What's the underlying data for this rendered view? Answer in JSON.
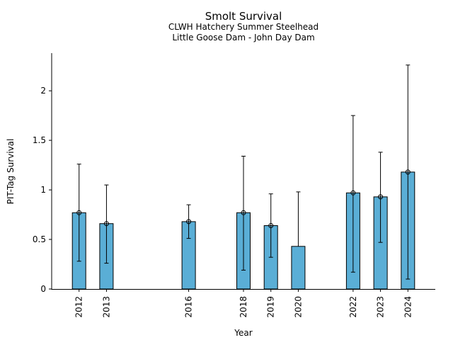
{
  "chart_data": {
    "type": "bar",
    "title": "Smolt Survival",
    "subtitle_lines": [
      "CLWH Hatchery Summer Steelhead",
      "Little Goose Dam - John Day Dam"
    ],
    "xlabel": "Year",
    "ylabel": "PIT-Tag Survival",
    "x_range": [
      2011,
      2025
    ],
    "ylim": [
      0,
      2.38
    ],
    "yticks": [
      0,
      0.5,
      1,
      1.5,
      2
    ],
    "ytick_labels": [
      "0",
      "0.5",
      "1",
      "1.5",
      "2"
    ],
    "grid": false,
    "bar_color": "#5aaed6",
    "points": [
      {
        "year": "2012",
        "value": 0.77,
        "lower": 0.28,
        "upper": 1.26,
        "marker": true
      },
      {
        "year": "2013",
        "value": 0.66,
        "lower": 0.26,
        "upper": 1.05,
        "marker": true
      },
      {
        "year": "2016",
        "value": 0.68,
        "lower": 0.51,
        "upper": 0.85,
        "marker": true
      },
      {
        "year": "2018",
        "value": 0.77,
        "lower": 0.19,
        "upper": 1.34,
        "marker": true
      },
      {
        "year": "2019",
        "value": 0.64,
        "lower": 0.32,
        "upper": 0.96,
        "marker": true
      },
      {
        "year": "2020",
        "value": 0.43,
        "lower": null,
        "upper": 0.98,
        "marker": false
      },
      {
        "year": "2022",
        "value": 0.97,
        "lower": 0.17,
        "upper": 1.75,
        "marker": true
      },
      {
        "year": "2023",
        "value": 0.93,
        "lower": 0.47,
        "upper": 1.38,
        "marker": true
      },
      {
        "year": "2024",
        "value": 1.18,
        "lower": 0.1,
        "upper": 2.26,
        "marker": true
      }
    ]
  }
}
